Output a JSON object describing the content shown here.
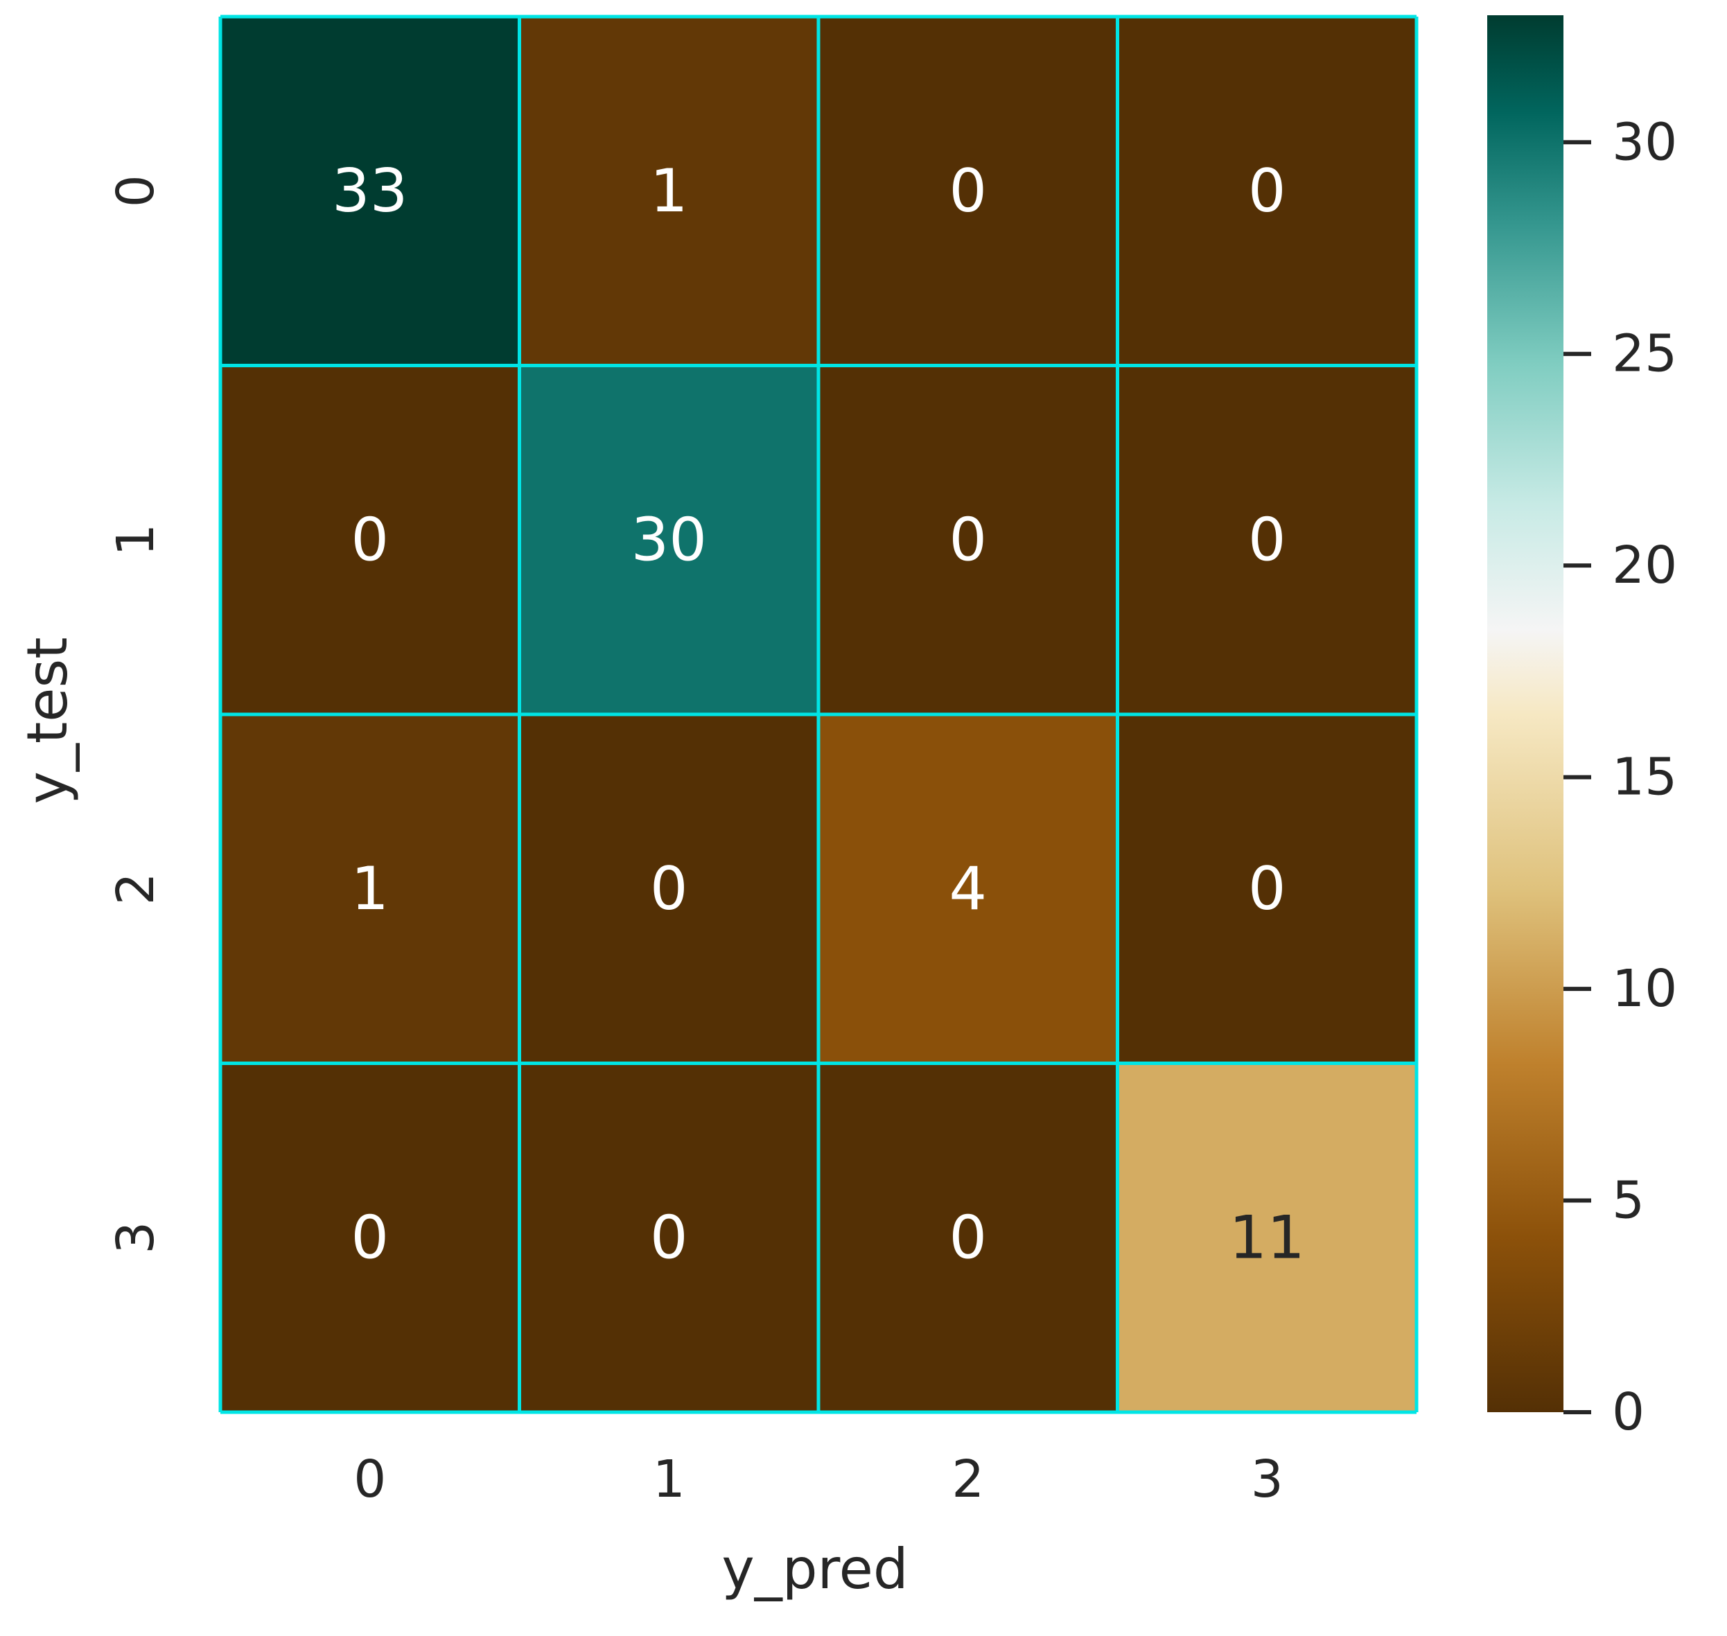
{
  "chart_data": {
    "type": "heatmap",
    "title": "",
    "xlabel": "y_pred",
    "ylabel": "y_test",
    "x_categories": [
      "0",
      "1",
      "2",
      "3"
    ],
    "y_categories": [
      "0",
      "1",
      "2",
      "3"
    ],
    "values": [
      [
        33,
        1,
        0,
        0
      ],
      [
        0,
        30,
        0,
        0
      ],
      [
        1,
        0,
        4,
        0
      ],
      [
        0,
        0,
        0,
        11
      ]
    ],
    "colorbar": {
      "vmin": 0,
      "vmax": 33,
      "ticks": [
        0,
        5,
        10,
        15,
        20,
        25,
        30
      ],
      "colormap": "BrBG"
    },
    "grid_line_color": "#00e5e5",
    "annotation_text_color_dark_cells": "#ffffff",
    "annotation_text_color_light_cells": "#262626"
  }
}
